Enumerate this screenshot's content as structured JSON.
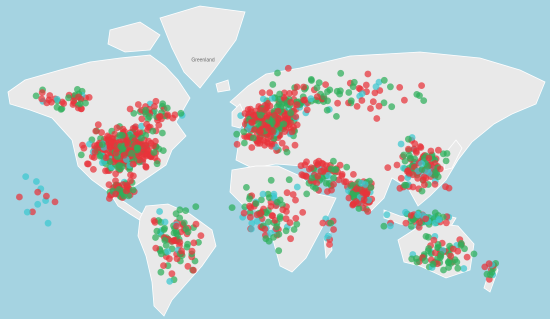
{
  "labels": {
    "greenland": "Greenland"
  }
}
